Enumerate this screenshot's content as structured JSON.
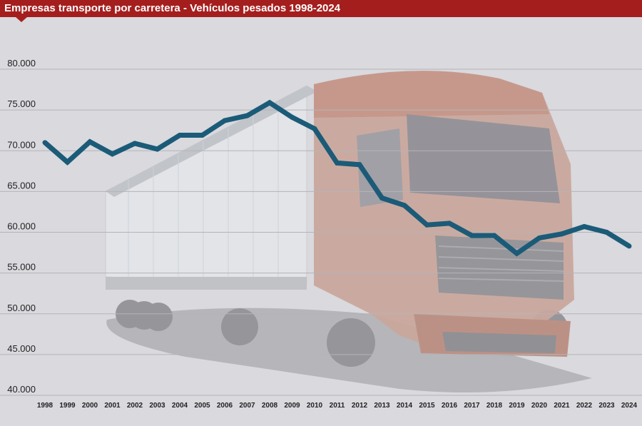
{
  "chart_data": {
    "type": "line",
    "title": "Empresas transporte por carretera - Vehículos pesados 1998-2024",
    "xlabel": "",
    "ylabel": "",
    "ylim": [
      40000,
      80000
    ],
    "yticks": [
      40000,
      45000,
      50000,
      55000,
      60000,
      65000,
      70000,
      75000,
      80000
    ],
    "ytick_labels": [
      "40.000",
      "45.000",
      "50.000",
      "55.000",
      "60.000",
      "65.000",
      "70.000",
      "75.000",
      "80.000"
    ],
    "grid": true,
    "categories": [
      "1998",
      "1999",
      "2000",
      "2001",
      "2002",
      "2003",
      "2004",
      "2005",
      "2006",
      "2007",
      "2008",
      "2009",
      "2010",
      "2011",
      "2012",
      "2013",
      "2014",
      "2015",
      "2016",
      "2017",
      "2018",
      "2019",
      "2020",
      "2021",
      "2022",
      "2023",
      "2024"
    ],
    "series": [
      {
        "values": [
          71000,
          68600,
          71100,
          69600,
          70900,
          70200,
          71900,
          71900,
          73700,
          74300,
          75900,
          74100,
          72700,
          68500,
          68300,
          64200,
          63300,
          60900,
          61100,
          59600,
          59600,
          57400,
          59300,
          59800,
          60700,
          60000,
          58300
        ]
      }
    ],
    "colors": {
      "line": "#1b5b78",
      "grid": "#b4b4b8",
      "title_bar": "#a51e1e",
      "background": "#d9d9de"
    }
  }
}
